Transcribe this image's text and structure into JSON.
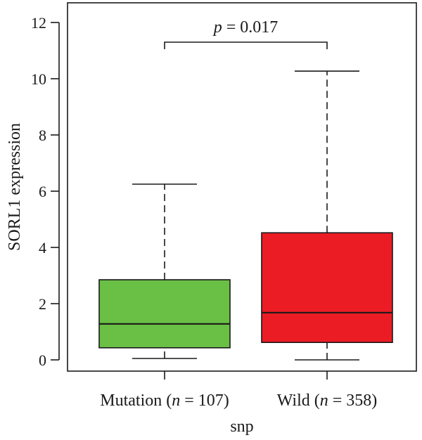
{
  "chart_data": {
    "type": "box",
    "title": "",
    "xlabel": "snp",
    "ylabel": "SORL1 expression",
    "ylim": [
      0,
      12
    ],
    "yticks": [
      0,
      2,
      4,
      6,
      8,
      10,
      12
    ],
    "grid": false,
    "legend": "none",
    "groups": [
      {
        "label_prefix": "Mutation (",
        "label_n": "n",
        "label_suffix": " = 107)",
        "min": 0.05,
        "q1": 0.43,
        "median": 1.28,
        "q3": 2.85,
        "max": 6.25,
        "color": "#6abf45"
      },
      {
        "label_prefix": "Wild (",
        "label_n": "n",
        "label_suffix": " = 358)",
        "min": 0.0,
        "q1": 0.62,
        "median": 1.68,
        "q3": 4.52,
        "max": 10.27,
        "color": "#ec1c24"
      }
    ],
    "annotation": {
      "p_symbol": "p",
      "p_text": " = 0.017",
      "bracket_y": 11.3
    }
  }
}
